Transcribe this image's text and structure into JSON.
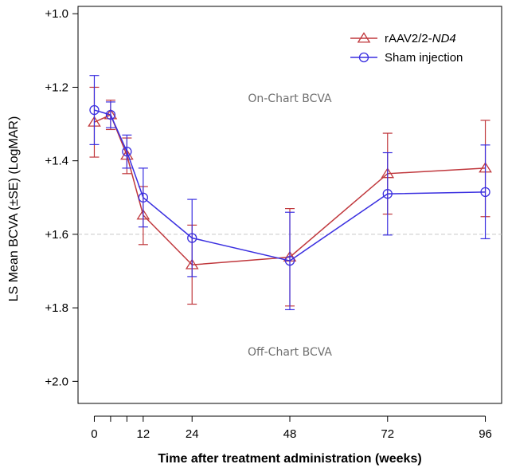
{
  "chart_data": {
    "type": "line",
    "xlabel": "Time after treatment administration (weeks)",
    "ylabel": "LS Mean BCVA (±SE) (LogMAR)",
    "x_ticks": [
      0,
      12,
      24,
      48,
      72,
      96
    ],
    "x_tick_labels": [
      "0",
      "12",
      "24",
      "48",
      "72",
      "96"
    ],
    "x_minor_ticks": [
      4,
      8
    ],
    "xlim": [
      -4,
      100
    ],
    "y_ticks": [
      1.0,
      1.2,
      1.4,
      1.6,
      1.8,
      2.0
    ],
    "y_tick_labels": [
      "+1.0",
      "+1.2",
      "+1.4",
      "+1.6",
      "+1.8",
      "+2.0"
    ],
    "ylim": [
      0.98,
      2.06
    ],
    "y_inverted": true,
    "reference_line": {
      "y": 1.6,
      "style": "dashed",
      "color": "#c8c8c8"
    },
    "annotations": [
      {
        "text": "On-Chart BCVA",
        "x": 48,
        "y": 1.24
      },
      {
        "text": "Off-Chart BCVA",
        "x": 48,
        "y": 1.93
      }
    ],
    "legend": {
      "position": "top-right"
    },
    "series": [
      {
        "name": "rAAV2/2-ND4",
        "name_plain": "rAAV2/2-",
        "name_italic": "ND4",
        "color": "#c0383d",
        "marker": "triangle",
        "x": [
          0,
          4,
          8,
          12,
          24,
          48,
          72,
          96
        ],
        "y": [
          1.295,
          1.275,
          1.385,
          1.548,
          1.683,
          1.662,
          1.435,
          1.42
        ],
        "se_low": [
          1.2,
          1.235,
          1.338,
          1.47,
          1.575,
          1.53,
          1.325,
          1.29
        ],
        "se_high": [
          1.39,
          1.315,
          1.435,
          1.628,
          1.79,
          1.795,
          1.545,
          1.552
        ]
      },
      {
        "name": "Sham injection",
        "color": "#3a2fe0",
        "marker": "circle",
        "x": [
          0,
          4,
          8,
          12,
          24,
          48,
          72,
          96
        ],
        "y": [
          1.262,
          1.275,
          1.375,
          1.5,
          1.61,
          1.672,
          1.49,
          1.485
        ],
        "se_low": [
          1.168,
          1.24,
          1.33,
          1.42,
          1.505,
          1.54,
          1.378,
          1.357
        ],
        "se_high": [
          1.356,
          1.31,
          1.42,
          1.58,
          1.715,
          1.805,
          1.602,
          1.612
        ]
      }
    ]
  }
}
